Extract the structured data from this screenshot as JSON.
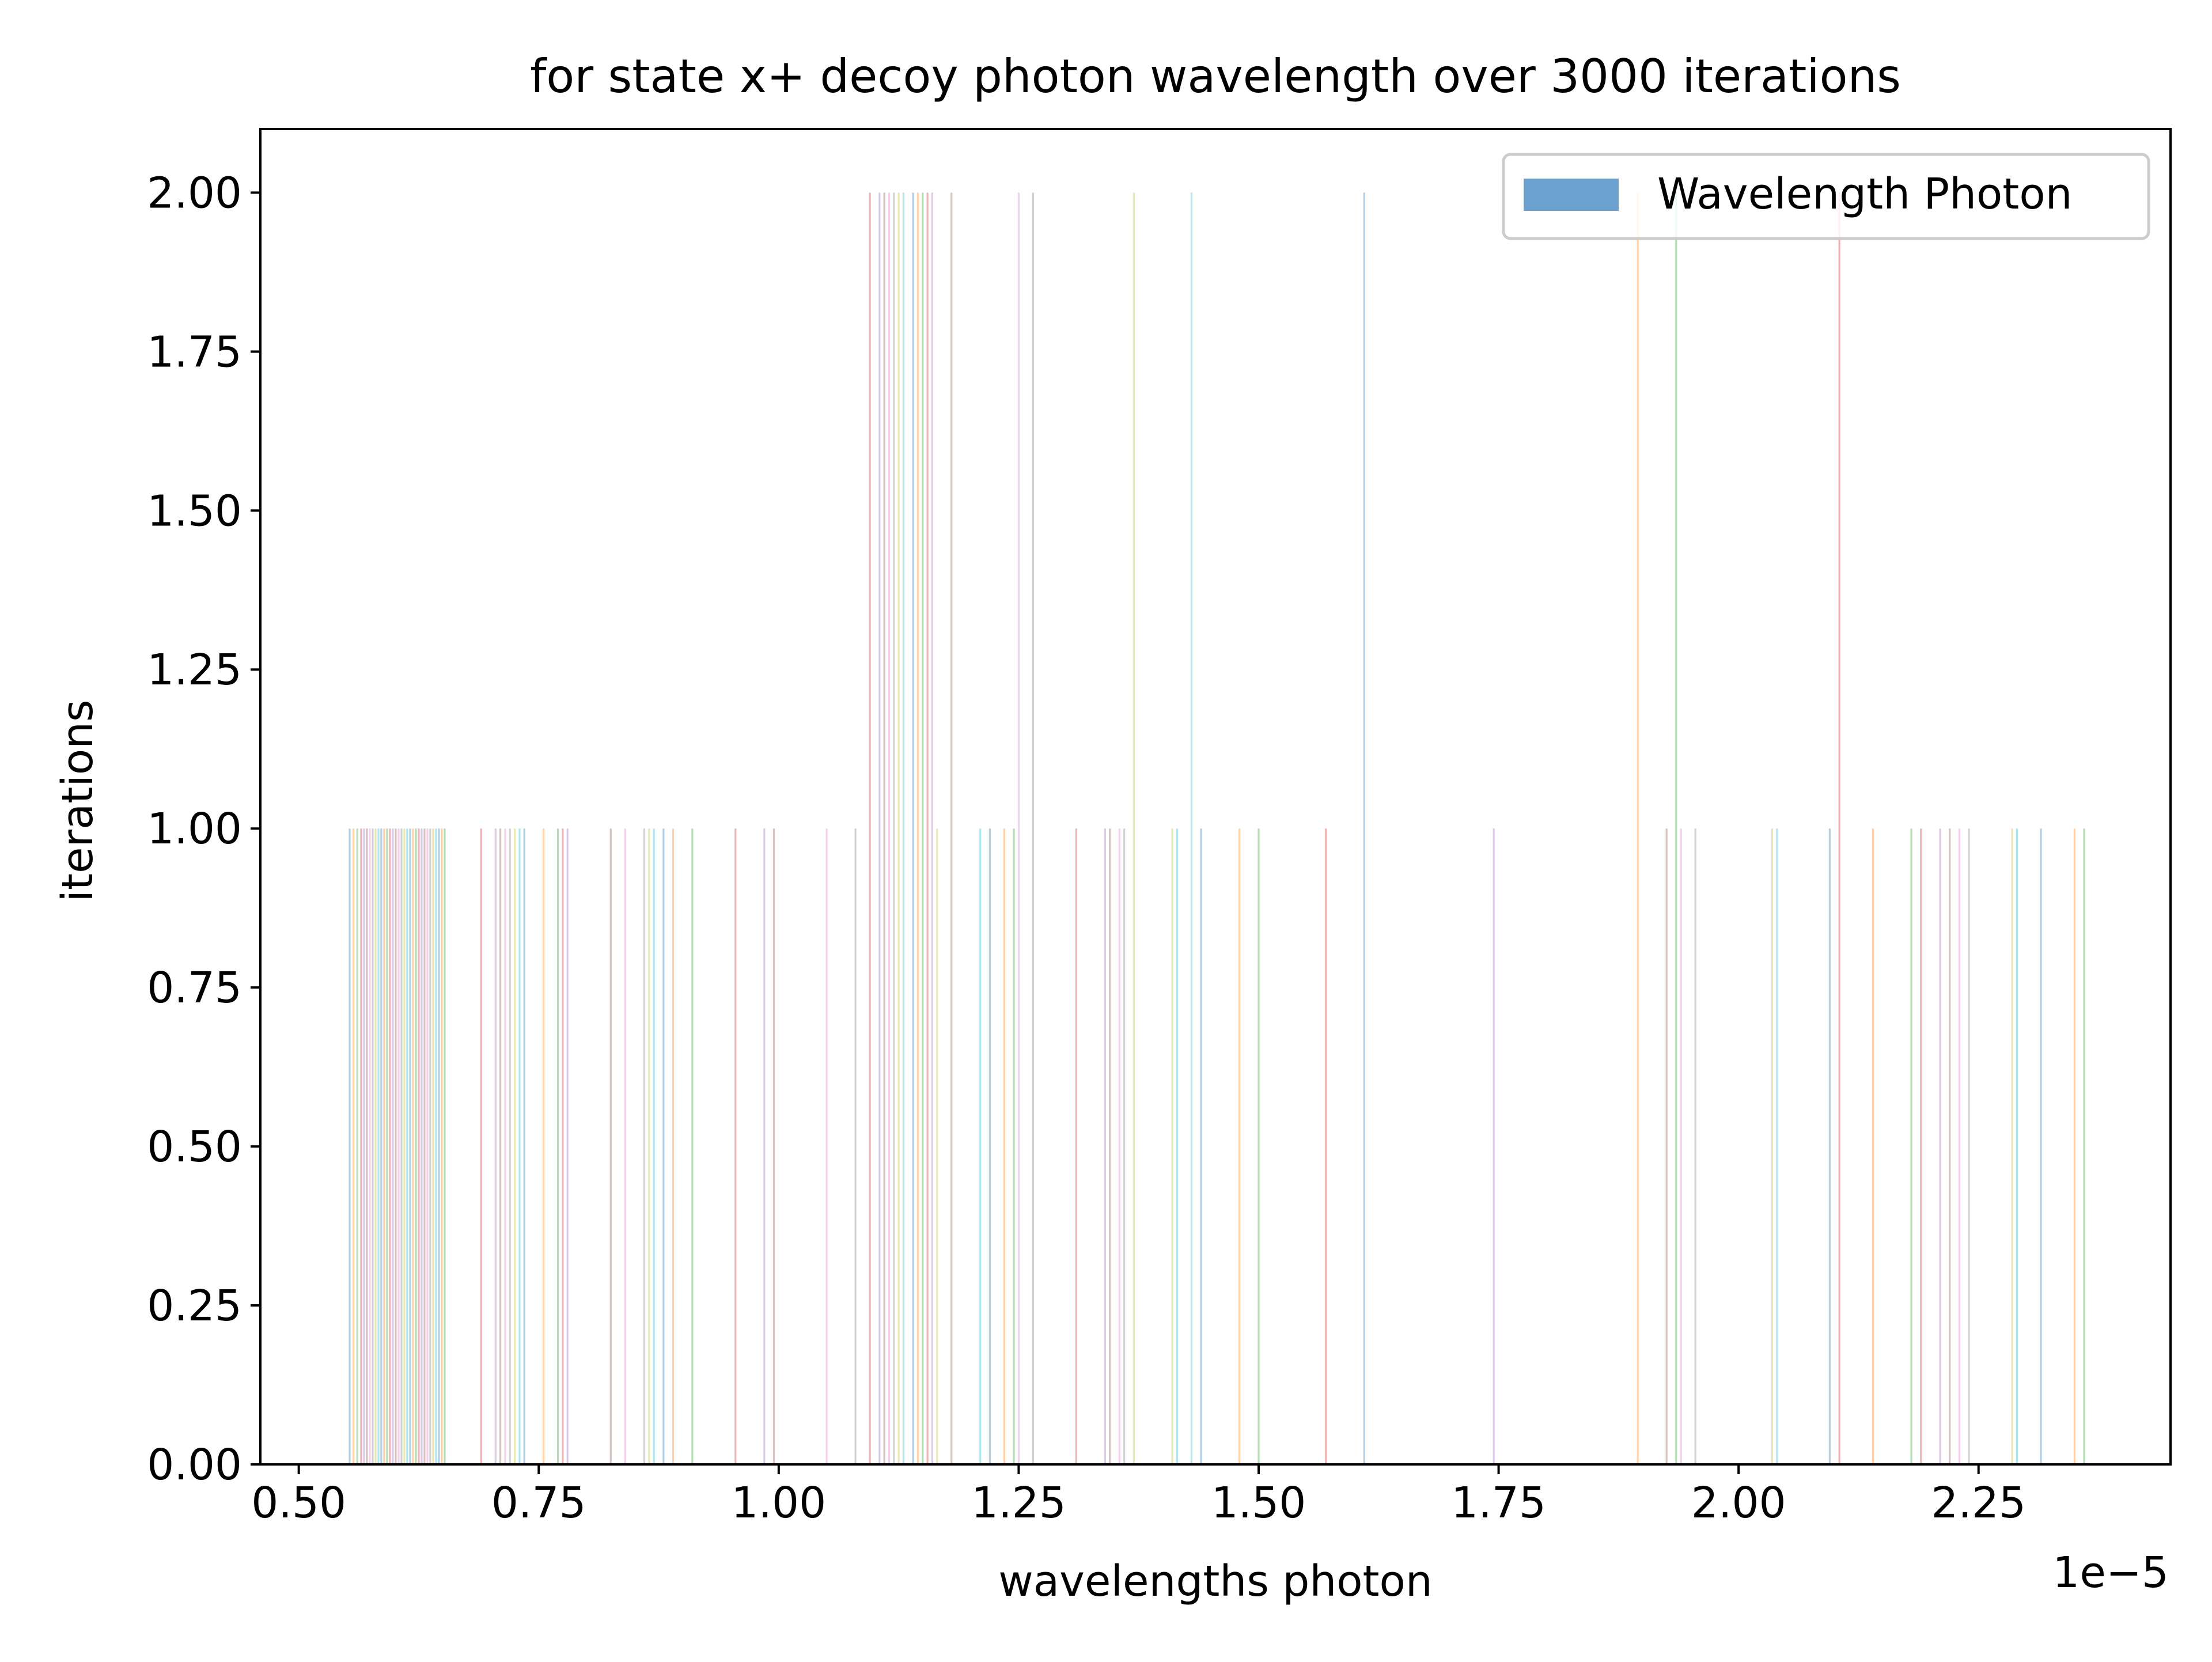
{
  "chart_data": {
    "type": "bar",
    "title": "for state x+ decoy photon wavelength over 3000 iterations",
    "xlabel": "wavelengths photon",
    "ylabel": "iterations",
    "x_offset_label": "1e−5",
    "xlim": [
      0.46,
      2.45
    ],
    "ylim": [
      0,
      2.1
    ],
    "x_ticks": [
      0.5,
      0.75,
      1.0,
      1.25,
      1.5,
      1.75,
      2.0,
      2.25
    ],
    "x_tick_labels": [
      "0.50",
      "0.75",
      "1.00",
      "1.25",
      "1.50",
      "1.75",
      "2.00",
      "2.25"
    ],
    "y_ticks": [
      0,
      0.25,
      0.5,
      0.75,
      1.0,
      1.25,
      1.5,
      1.75,
      2.0
    ],
    "y_tick_labels": [
      "0.00",
      "0.25",
      "0.50",
      "0.75",
      "1.00",
      "1.25",
      "1.50",
      "1.75",
      "2.00"
    ],
    "grid": false,
    "legend": {
      "position": "upper right",
      "label": "Wavelength Photon",
      "color": "#6aa1cf"
    },
    "bar_colors": [
      "#1f77b4",
      "#ff7f0e",
      "#2ca02c",
      "#d62728",
      "#9467bd",
      "#8c564b",
      "#e377c2",
      "#7f7f7f",
      "#bcbd22",
      "#17becf"
    ],
    "bar_alpha": 0.35,
    "series": [
      {
        "values_count_2": [
          1.095,
          1.105,
          1.11,
          1.115,
          1.12,
          1.125,
          1.13,
          1.14,
          1.145,
          1.15,
          1.155,
          1.16,
          1.18,
          1.25,
          1.265,
          1.37,
          1.43,
          1.61,
          1.895,
          1.935,
          2.105
        ],
        "values_count_1": [
          0.553,
          0.557,
          0.561,
          0.565,
          0.568,
          0.571,
          0.574,
          0.577,
          0.58,
          0.583,
          0.586,
          0.589,
          0.592,
          0.595,
          0.598,
          0.601,
          0.604,
          0.607,
          0.61,
          0.613,
          0.616,
          0.619,
          0.622,
          0.625,
          0.628,
          0.631,
          0.634,
          0.637,
          0.64,
          0.643,
          0.646,
          0.649,
          0.652,
          0.69,
          0.705,
          0.71,
          0.715,
          0.72,
          0.725,
          0.73,
          0.735,
          0.755,
          0.77,
          0.775,
          0.78,
          0.825,
          0.84,
          0.86,
          0.865,
          0.87,
          0.88,
          0.89,
          0.91,
          0.955,
          0.985,
          0.995,
          1.05,
          1.08,
          1.165,
          1.21,
          1.22,
          1.235,
          1.245,
          1.31,
          1.34,
          1.345,
          1.355,
          1.36,
          1.41,
          1.415,
          1.44,
          1.48,
          1.5,
          1.57,
          1.745,
          1.925,
          1.94,
          1.955,
          2.035,
          2.04,
          2.095,
          2.14,
          2.18,
          2.19,
          2.21,
          2.22,
          2.23,
          2.24,
          2.285,
          2.29,
          2.315,
          2.35,
          2.36
        ]
      }
    ]
  }
}
